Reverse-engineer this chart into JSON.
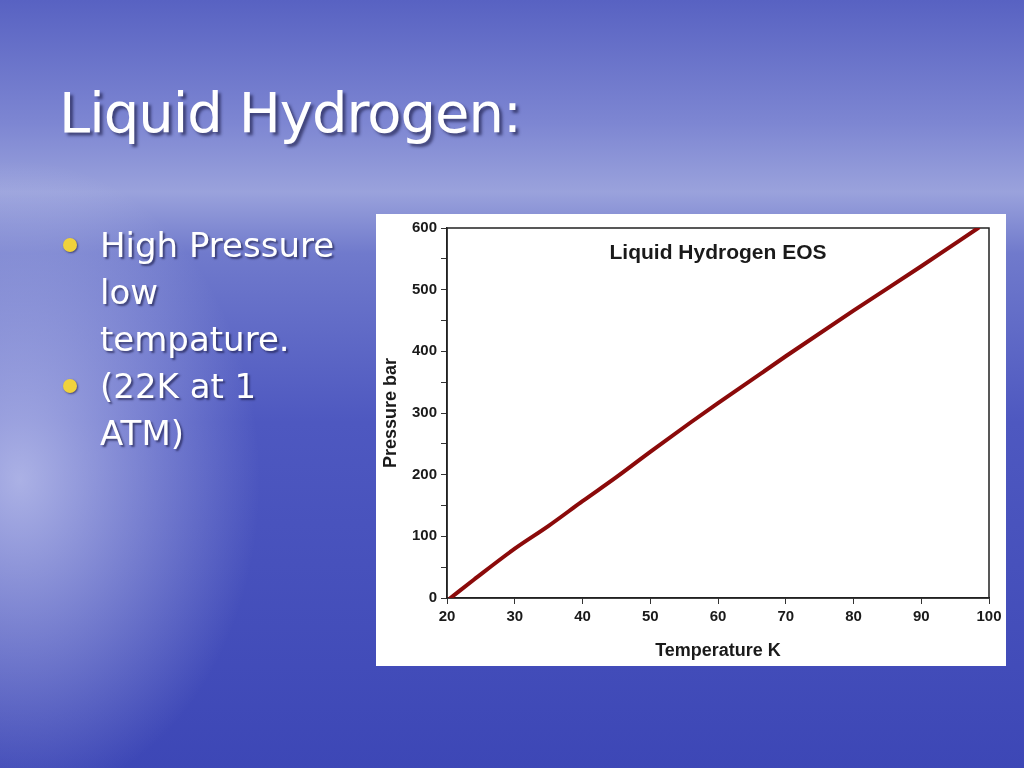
{
  "chart_data": {
    "type": "line",
    "title": "Liquid Hydrogen:",
    "subtitle": "Liquid Hydrogen EOS",
    "xlabel": "Temperature K",
    "ylabel": "Pressure bar",
    "annotations": [
      "High Pressure low tempature.",
      "(22K at 1 ATM)"
    ],
    "x": [
      20.5,
      24,
      30,
      35,
      40,
      45,
      50,
      56,
      60,
      70,
      80,
      90,
      98.4
    ],
    "series": [
      {
        "color": "#8b0a0a",
        "values": [
          0,
          30,
          80,
          117,
          157,
          196,
          237,
          285,
          316,
          392,
          466,
          538,
          600
        ]
      }
    ],
    "xlim": [
      20,
      100
    ],
    "xticks": [
      20,
      30,
      40,
      50,
      60,
      70,
      80,
      90,
      100
    ],
    "ylim": [
      0,
      600
    ],
    "yticks": [
      0,
      {
        "value": 50,
        "label": null
      },
      100,
      {
        "value": 150,
        "label": null
      },
      200,
      {
        "value": 250,
        "label": null
      },
      300,
      {
        "value": 350,
        "label": null
      },
      400,
      {
        "value": 450,
        "label": null
      },
      500,
      {
        "value": 550,
        "label": null
      },
      600
    ],
    "marker": "none"
  }
}
